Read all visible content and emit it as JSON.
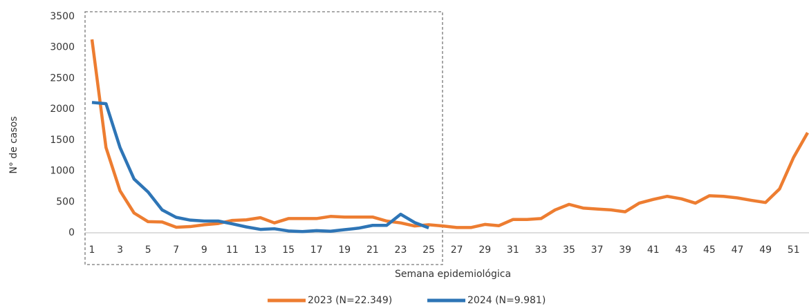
{
  "chart_data": {
    "type": "line",
    "y_label": "N° de casos",
    "x_label": "Semana epidemiológica",
    "x": [
      1,
      2,
      3,
      4,
      5,
      6,
      7,
      8,
      9,
      10,
      11,
      12,
      13,
      14,
      15,
      16,
      17,
      18,
      19,
      20,
      21,
      22,
      23,
      24,
      25,
      26,
      27,
      28,
      29,
      30,
      31,
      32,
      33,
      34,
      35,
      36,
      37,
      38,
      39,
      40,
      41,
      42,
      43,
      44,
      45,
      46,
      47,
      48,
      49,
      50,
      51,
      52
    ],
    "xlim": [
      1,
      52
    ],
    "xticks": [
      1,
      3,
      5,
      7,
      9,
      11,
      13,
      15,
      17,
      19,
      21,
      23,
      25,
      27,
      29,
      31,
      33,
      35,
      37,
      39,
      41,
      43,
      45,
      47,
      49,
      51
    ],
    "ylim": [
      0,
      3500
    ],
    "yticks": [
      0,
      500,
      1000,
      1500,
      2000,
      2500,
      3000,
      3500
    ],
    "series": [
      {
        "name": "2023 (N=22.349)",
        "color": "#ED7D31",
        "values": [
          3130,
          1380,
          680,
          320,
          180,
          175,
          90,
          100,
          130,
          150,
          200,
          210,
          245,
          160,
          230,
          230,
          230,
          265,
          255,
          255,
          255,
          190,
          160,
          110,
          130,
          110,
          85,
          85,
          135,
          115,
          215,
          215,
          230,
          370,
          460,
          400,
          385,
          370,
          340,
          480,
          540,
          590,
          550,
          480,
          600,
          590,
          565,
          525,
          490,
          710,
          1220,
          1620
        ]
      },
      {
        "name": "2024 (N=9.981)",
        "color": "#2E75B6",
        "values": [
          2110,
          2090,
          1380,
          870,
          660,
          370,
          250,
          205,
          190,
          190,
          145,
          95,
          55,
          65,
          30,
          20,
          35,
          25,
          50,
          75,
          120,
          120,
          300,
          165,
          80,
          null,
          null,
          null,
          null,
          null,
          null,
          null,
          null,
          null,
          null,
          null,
          null,
          null,
          null,
          null,
          null,
          null,
          null,
          null,
          null,
          null,
          null,
          null,
          null,
          null,
          null,
          null
        ]
      }
    ]
  }
}
